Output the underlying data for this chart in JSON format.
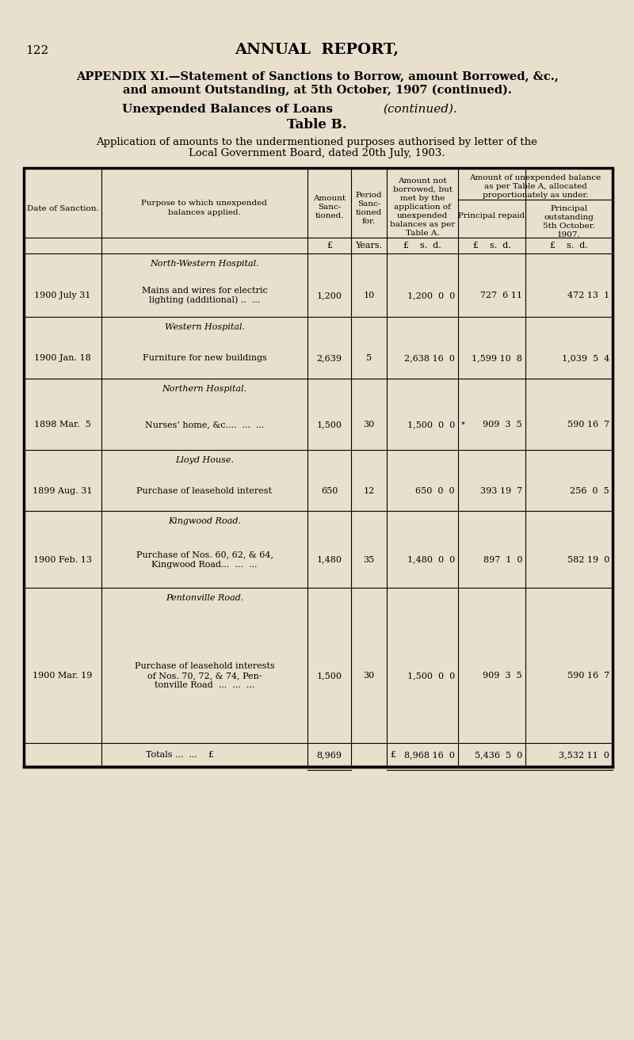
{
  "bg_color": "#e8e0cc",
  "page_number": "122",
  "header_title": "ANNUAL  REPORT,",
  "appendix_line1": "APPENDIX XI.—Statement of Sanctions to Borrow, amount Borrowed, &c.,",
  "appendix_line2": "and amount Outstanding, at 5th October, 1907 (continued).",
  "subtitle1_bold": "Unexpended Balances of Loans ",
  "subtitle1_italic": "(continued).",
  "subtitle2": "Table B.",
  "intro_line1": "Application of amounts to the undermentioned purposes authorised by letter of the",
  "intro_line2": "Local Government Board, dated 20th July, 1903.",
  "rows": [
    {
      "section_title": "North-Western Hospital.",
      "date": "1900 July 31",
      "purpose_lines": [
        "Mains and wires for electric",
        "lighting (additional) ..  ..."
      ],
      "amount": "1,200",
      "period": "10",
      "app_amount": "1,200  0  0",
      "principal_repaid": "727  6 11",
      "principal_outstanding": "472 13  1",
      "asterisk": false
    },
    {
      "section_title": "Western Hospital.",
      "date": "1900 Jan. 18",
      "purpose_lines": [
        "Furniture for new buildings"
      ],
      "amount": "2,639",
      "period": "5",
      "app_amount": "2,638 16  0",
      "principal_repaid": "1,599 10  8",
      "principal_outstanding": "1,039  5  4",
      "asterisk": false
    },
    {
      "section_title": "Northern Hospital.",
      "date": "1898 Mar.  5",
      "purpose_lines": [
        "Nurses’ home, &c....  ...  ..."
      ],
      "amount": "1,500",
      "period": "30",
      "app_amount": "1,500  0  0",
      "principal_repaid": "909  3  5",
      "principal_outstanding": "590 16  7",
      "asterisk": true
    },
    {
      "section_title": "Lloyd House.",
      "date": "1899 Aug. 31",
      "purpose_lines": [
        "Purchase of leasehold interest"
      ],
      "amount": "650",
      "period": "12",
      "app_amount": "650  0  0",
      "principal_repaid": "393 19  7",
      "principal_outstanding": "256  0  5",
      "asterisk": false
    },
    {
      "section_title": "Kingwood Road.",
      "date": "1900 Feb. 13",
      "purpose_lines": [
        "Purchase of Nos. 60, 62, & 64,",
        "Kingwood Road...  ...  ..."
      ],
      "amount": "1,480",
      "period": "35",
      "app_amount": "1,480  0  0",
      "principal_repaid": "897  1  0",
      "principal_outstanding": "582 19  0",
      "asterisk": false
    },
    {
      "section_title": "Pentonville Road.",
      "date": "1900 Mar. 19",
      "purpose_lines": [
        "Purchase of leasehold interests",
        "of Nos. 70, 72, & 74, Pen-",
        "tonville Road  ...  ...  ..."
      ],
      "amount": "1,500",
      "period": "30",
      "app_amount": "1,500  0  0",
      "principal_repaid": "909  3  5",
      "principal_outstanding": "590 16  7",
      "asterisk": false
    }
  ],
  "totals_label": "Totals ...  ...    £",
  "totals_amount": "8,969",
  "totals_app_amount": "8,968 16  0",
  "totals_principal_repaid": "5,436  5  0",
  "totals_principal_outstanding": "3,532 11  0"
}
